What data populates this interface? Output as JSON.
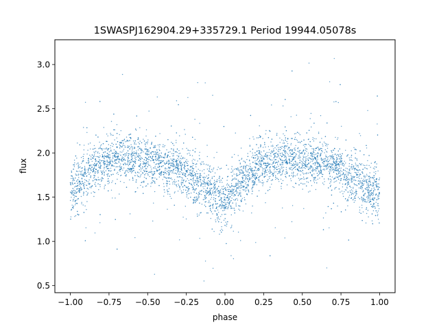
{
  "chart_data": {
    "type": "scatter",
    "title": "1SWASPJ162904.29+335729.1 Period 19944.05078s",
    "xlabel": "phase",
    "ylabel": "flux",
    "xlim": [
      -1.1,
      1.1
    ],
    "ylim": [
      0.42,
      3.28
    ],
    "x_ticks": [
      -1.0,
      -0.75,
      -0.5,
      -0.25,
      0.0,
      0.25,
      0.5,
      0.75,
      1.0
    ],
    "x_tick_labels": [
      "−1.00",
      "−0.75",
      "−0.50",
      "−0.25",
      "0.00",
      "0.25",
      "0.50",
      "0.75",
      "1.00"
    ],
    "y_ticks": [
      0.5,
      1.0,
      1.5,
      2.0,
      2.5,
      3.0
    ],
    "y_tick_labels": [
      "0.5",
      "1.0",
      "1.5",
      "2.0",
      "2.5",
      "3.0"
    ],
    "grid": false,
    "legend": "none",
    "point_color": "#1f77b4",
    "series": [
      {
        "phase": [
          -1.0,
          -0.9,
          -0.8,
          -0.75,
          -0.7,
          -0.6,
          -0.5,
          -0.4,
          -0.3,
          -0.25,
          -0.2,
          -0.1,
          -0.05,
          0.0,
          0.05,
          0.1,
          0.2,
          0.25,
          0.3,
          0.4,
          0.5,
          0.6,
          0.7,
          0.75,
          0.8,
          0.9,
          1.0
        ],
        "median_flux": [
          1.55,
          1.72,
          1.88,
          1.92,
          1.95,
          1.94,
          1.9,
          1.85,
          1.8,
          1.77,
          1.7,
          1.58,
          1.5,
          1.48,
          1.55,
          1.65,
          1.82,
          1.87,
          1.9,
          1.93,
          1.92,
          1.9,
          1.85,
          1.82,
          1.74,
          1.62,
          1.52
        ],
        "spread": [
          0.28,
          0.26,
          0.24,
          0.24,
          0.24,
          0.24,
          0.24,
          0.24,
          0.24,
          0.24,
          0.25,
          0.26,
          0.27,
          0.27,
          0.27,
          0.26,
          0.24,
          0.24,
          0.24,
          0.24,
          0.24,
          0.24,
          0.24,
          0.24,
          0.25,
          0.26,
          0.28
        ]
      }
    ]
  }
}
